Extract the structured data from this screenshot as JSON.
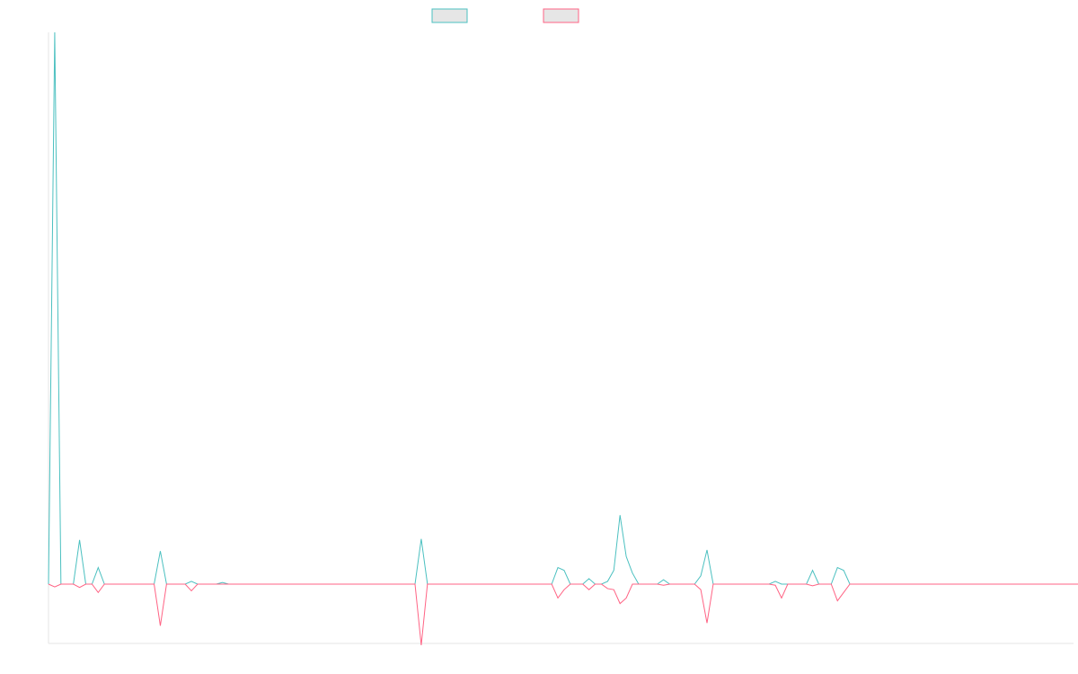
{
  "chart_data": {
    "type": "line",
    "title": "",
    "xlabel": "",
    "ylabel": "",
    "legend_position": "top-center",
    "grid": false,
    "x_points": 166,
    "ylim": [
      -1.1,
      10.0
    ],
    "series": [
      {
        "color": "#4bc0c0",
        "legend_fill": "#e6e6e6",
        "values": [
          0,
          10,
          0,
          0,
          0,
          0.8,
          0,
          0,
          0.3,
          0,
          0,
          0,
          0,
          0,
          0,
          0,
          0,
          0,
          0.6,
          0,
          0,
          0,
          0,
          0.05,
          0,
          0,
          0,
          0,
          0.03,
          0,
          0,
          0,
          0,
          0,
          0,
          0,
          0,
          0,
          0,
          0,
          0,
          0,
          0,
          0,
          0,
          0,
          0,
          0,
          0,
          0,
          0,
          0,
          0,
          0,
          0,
          0,
          0,
          0,
          0,
          0,
          0.82,
          0,
          0,
          0,
          0,
          0,
          0,
          0,
          0,
          0,
          0,
          0,
          0,
          0,
          0,
          0,
          0,
          0,
          0,
          0,
          0,
          0,
          0.3,
          0.25,
          0,
          0,
          0,
          0.1,
          0,
          0,
          0.05,
          0.25,
          1.25,
          0.5,
          0.2,
          0,
          0,
          0,
          0,
          0.08,
          0,
          0,
          0,
          0,
          0,
          0.15,
          0.62,
          0,
          0,
          0,
          0,
          0,
          0,
          0,
          0,
          0,
          0,
          0.05,
          0,
          0,
          0,
          0,
          0,
          0.25,
          0,
          0,
          0,
          0.3,
          0.25,
          0,
          0,
          0,
          0,
          0,
          0,
          0,
          0,
          0,
          0,
          0,
          0,
          0,
          0,
          0,
          0,
          0,
          0,
          0,
          0,
          0,
          0,
          0,
          0,
          0,
          0,
          0,
          0,
          0,
          0,
          0,
          0,
          0,
          0,
          0,
          0,
          0,
          0,
          0,
          0,
          0,
          0,
          0
        ]
      },
      {
        "color": "#ff6384",
        "legend_fill": "#e6e6e6",
        "values": [
          0,
          -0.05,
          0,
          0,
          0,
          -0.06,
          0,
          0,
          -0.15,
          0,
          0,
          0,
          0,
          0,
          0,
          0,
          0,
          0,
          -0.75,
          0,
          0,
          0,
          0,
          -0.12,
          0,
          0,
          0,
          0,
          0,
          0,
          0,
          0,
          0,
          0,
          0,
          0,
          0,
          0,
          0,
          0,
          0,
          0,
          0,
          0,
          0,
          0,
          0,
          0,
          0,
          0,
          0,
          0,
          0,
          0,
          0,
          0,
          0,
          0,
          0,
          0,
          -1.1,
          0,
          0,
          0,
          0,
          0,
          0,
          0,
          0,
          0,
          0,
          0,
          0,
          0,
          0,
          0,
          0,
          0,
          0,
          0,
          0,
          0,
          -0.25,
          -0.1,
          0,
          0,
          0,
          -0.1,
          0,
          0,
          -0.08,
          -0.1,
          -0.35,
          -0.25,
          0,
          0,
          0,
          0,
          0,
          -0.02,
          0,
          0,
          0,
          0,
          0,
          -0.1,
          -0.7,
          0,
          0,
          0,
          0,
          0,
          0,
          0,
          0,
          0,
          0,
          -0.02,
          -0.25,
          0,
          0,
          0,
          0,
          -0.03,
          0,
          0,
          0,
          -0.3,
          -0.15,
          0,
          0,
          0,
          0,
          0,
          0,
          0,
          0,
          0,
          0,
          0,
          0,
          0,
          0,
          0,
          0,
          0,
          0,
          0,
          0,
          0,
          0,
          0,
          0,
          0,
          0,
          0,
          0,
          0,
          0,
          0,
          0,
          0,
          0,
          0,
          0,
          0,
          0,
          0,
          0,
          0,
          0,
          0
        ]
      }
    ]
  }
}
